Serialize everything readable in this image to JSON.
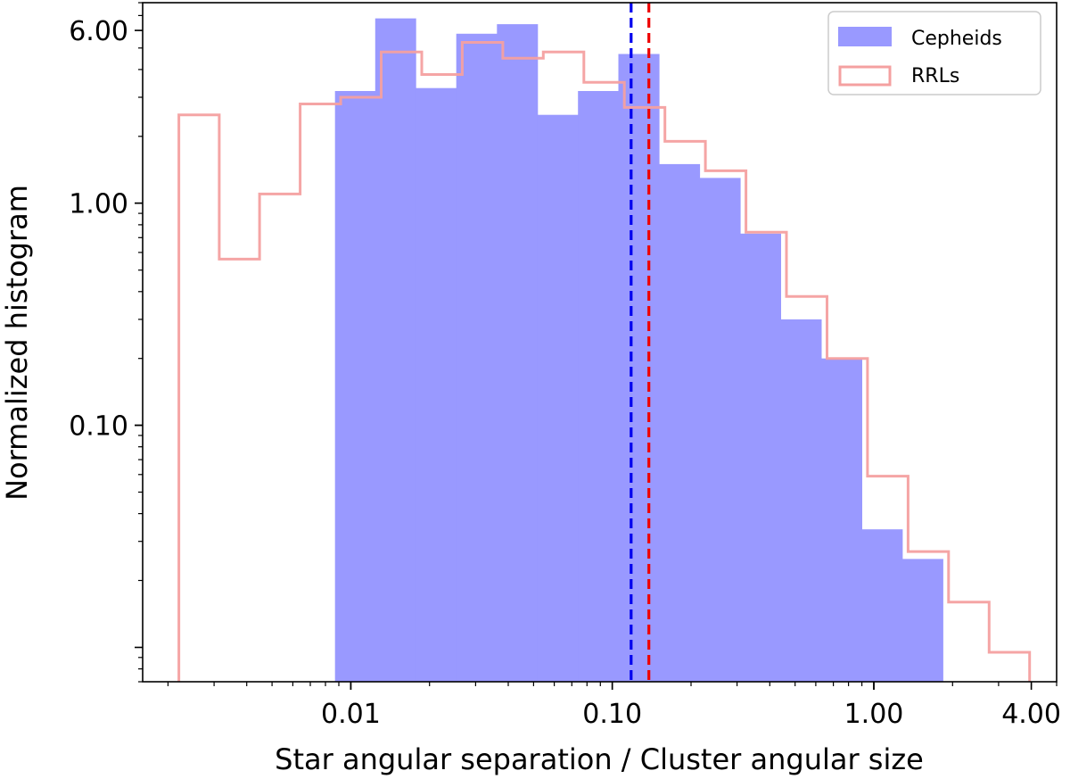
{
  "chart_data": {
    "type": "histogram",
    "xlabel": "Star angular separation / Cluster angular size",
    "ylabel": "Normalized histogram",
    "x_scale": "log",
    "y_scale": "log",
    "xlim": [
      0.0016,
      5.0
    ],
    "ylim": [
      0.007,
      8.0
    ],
    "x_ticks": [
      {
        "value": 0.01,
        "label": "0.01"
      },
      {
        "value": 0.1,
        "label": "0.10"
      },
      {
        "value": 1.0,
        "label": "1.00"
      },
      {
        "value": 4.0,
        "label": "4.00"
      }
    ],
    "y_ticks": [
      {
        "value": 0.1,
        "label": "0.10"
      },
      {
        "value": 1.0,
        "label": "1.00"
      },
      {
        "value": 6.0,
        "label": "6.00"
      }
    ],
    "legend": {
      "position": "top-right"
    },
    "series": [
      {
        "name": "Cepheids",
        "kind": "filled",
        "color": "#9999ff",
        "edges": [
          0.0087,
          0.0124,
          0.0177,
          0.0253,
          0.0362,
          0.0517,
          0.0739,
          0.1055,
          0.1508,
          0.2155,
          0.308,
          0.44,
          0.629,
          0.899,
          1.284,
          1.835
        ],
        "values": [
          3.2,
          6.8,
          3.3,
          5.8,
          6.4,
          2.5,
          3.2,
          4.7,
          1.5,
          1.3,
          0.73,
          0.3,
          0.2,
          0.034,
          0.025
        ]
      },
      {
        "name": "RRLs",
        "kind": "step",
        "color": "#f4a0a0",
        "edges": [
          0.0022,
          0.00314,
          0.00448,
          0.0064,
          0.00915,
          0.01307,
          0.01868,
          0.02668,
          0.03812,
          0.05447,
          0.07782,
          0.1112,
          0.1589,
          0.227,
          0.3243,
          0.4634,
          0.6621,
          0.946,
          1.3517,
          1.9313,
          2.7594,
          3.9427
        ],
        "values": [
          2.5,
          0.56,
          1.1,
          2.8,
          3.0,
          4.8,
          3.8,
          5.3,
          4.5,
          4.8,
          3.5,
          2.7,
          1.9,
          1.4,
          0.74,
          0.38,
          0.2,
          0.059,
          0.027,
          0.016,
          0.0095
        ]
      }
    ],
    "vlines": [
      {
        "x": 0.118,
        "color": "#0000ee",
        "style": "dashed"
      },
      {
        "x": 0.138,
        "color": "#ee0000",
        "style": "dashed"
      }
    ]
  }
}
